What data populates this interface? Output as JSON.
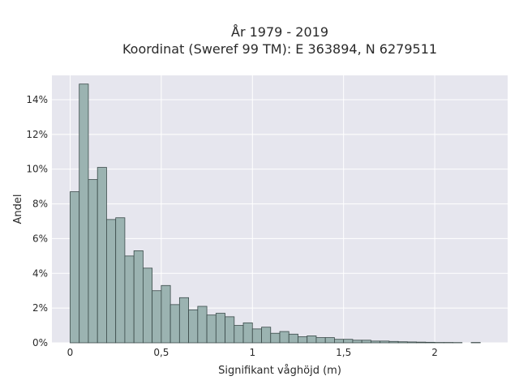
{
  "chart_data": {
    "type": "bar",
    "title": "År 1979 - 2019",
    "subtitle": "Koordinat (Sweref 99 TM): E 363894, N 6279511",
    "xlabel": "Signifikant våghöjd (m)",
    "ylabel": "Andel",
    "xlim": [
      -0.1,
      2.4
    ],
    "ylim": [
      0,
      15.4
    ],
    "x_ticks": [
      {
        "value": 0,
        "label": "0"
      },
      {
        "value": 0.5,
        "label": "0,5"
      },
      {
        "value": 1,
        "label": "1"
      },
      {
        "value": 1.5,
        "label": "1,5"
      },
      {
        "value": 2,
        "label": "2"
      }
    ],
    "y_ticks": [
      {
        "value": 0,
        "label": "0%"
      },
      {
        "value": 2,
        "label": "2%"
      },
      {
        "value": 4,
        "label": "4%"
      },
      {
        "value": 6,
        "label": "6%"
      },
      {
        "value": 8,
        "label": "8%"
      },
      {
        "value": 10,
        "label": "10%"
      },
      {
        "value": 12,
        "label": "12%"
      },
      {
        "value": 14,
        "label": "14%"
      }
    ],
    "grid": true,
    "bin_width": 0.05,
    "bar_color": "#9bb3b1",
    "edge_color": "#3a4a49",
    "background": "#e6e6ee",
    "bins_start": [
      0.0,
      0.05,
      0.1,
      0.15,
      0.2,
      0.25,
      0.3,
      0.35,
      0.4,
      0.45,
      0.5,
      0.55,
      0.6,
      0.65,
      0.7,
      0.75,
      0.8,
      0.85,
      0.9,
      0.95,
      1.0,
      1.05,
      1.1,
      1.15,
      1.2,
      1.25,
      1.3,
      1.35,
      1.4,
      1.45,
      1.5,
      1.55,
      1.6,
      1.65,
      1.7,
      1.75,
      1.8,
      1.85,
      1.9,
      1.95,
      2.0,
      2.05,
      2.1,
      2.15,
      2.2
    ],
    "values": [
      8.7,
      14.9,
      9.4,
      10.1,
      7.1,
      7.2,
      5.0,
      5.3,
      4.3,
      3.0,
      3.3,
      2.2,
      2.6,
      1.9,
      2.1,
      1.6,
      1.7,
      1.5,
      1.0,
      1.15,
      0.8,
      0.9,
      0.55,
      0.65,
      0.5,
      0.35,
      0.4,
      0.3,
      0.3,
      0.2,
      0.2,
      0.15,
      0.15,
      0.1,
      0.1,
      0.08,
      0.06,
      0.05,
      0.04,
      0.03,
      0.02,
      0.02,
      0.015,
      0.0,
      0.02
    ]
  }
}
